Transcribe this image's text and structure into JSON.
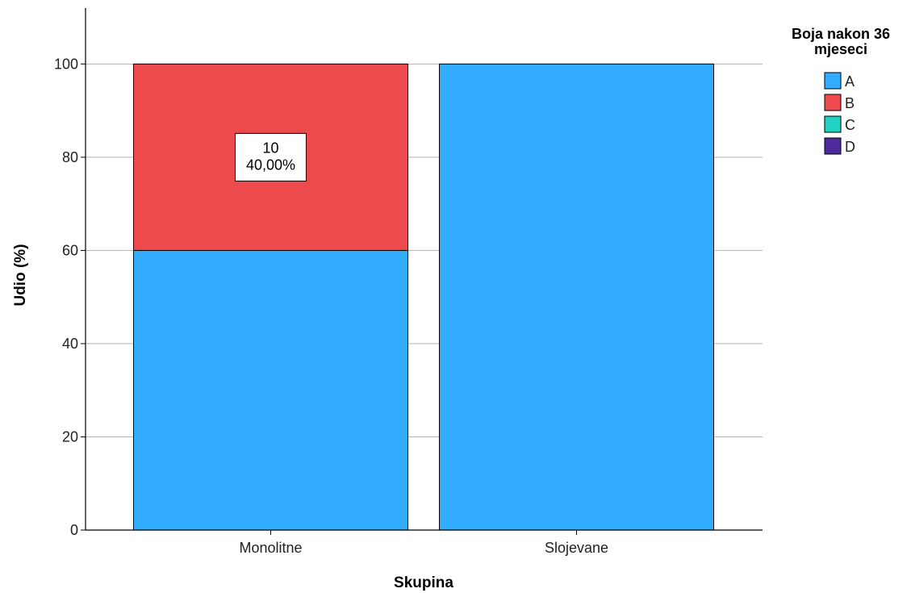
{
  "chart_data": {
    "type": "bar",
    "stacked": true,
    "categories": [
      "Monolitne",
      "Slojevane"
    ],
    "series": [
      {
        "name": "A",
        "values": [
          60,
          100
        ],
        "color": "#33adff"
      },
      {
        "name": "B",
        "values": [
          40,
          0
        ],
        "color": "#ec4a4d"
      },
      {
        "name": "C",
        "values": [
          0,
          0
        ],
        "color": "#21d1c1"
      },
      {
        "name": "D",
        "values": [
          0,
          0
        ],
        "color": "#4e2a9c"
      }
    ],
    "xlabel": "Skupina",
    "ylabel": "Udio (%)",
    "ylim": [
      0,
      112
    ],
    "yticks": [
      0,
      20,
      40,
      60,
      80,
      100
    ],
    "grid": "horizontal",
    "legend": {
      "title_lines": [
        "Boja nakon 36",
        "mjeseci"
      ],
      "position": "top-right"
    },
    "annotations": [
      {
        "category": "Monolitne",
        "series": "B",
        "lines": [
          "10",
          "40,00%"
        ]
      }
    ]
  }
}
